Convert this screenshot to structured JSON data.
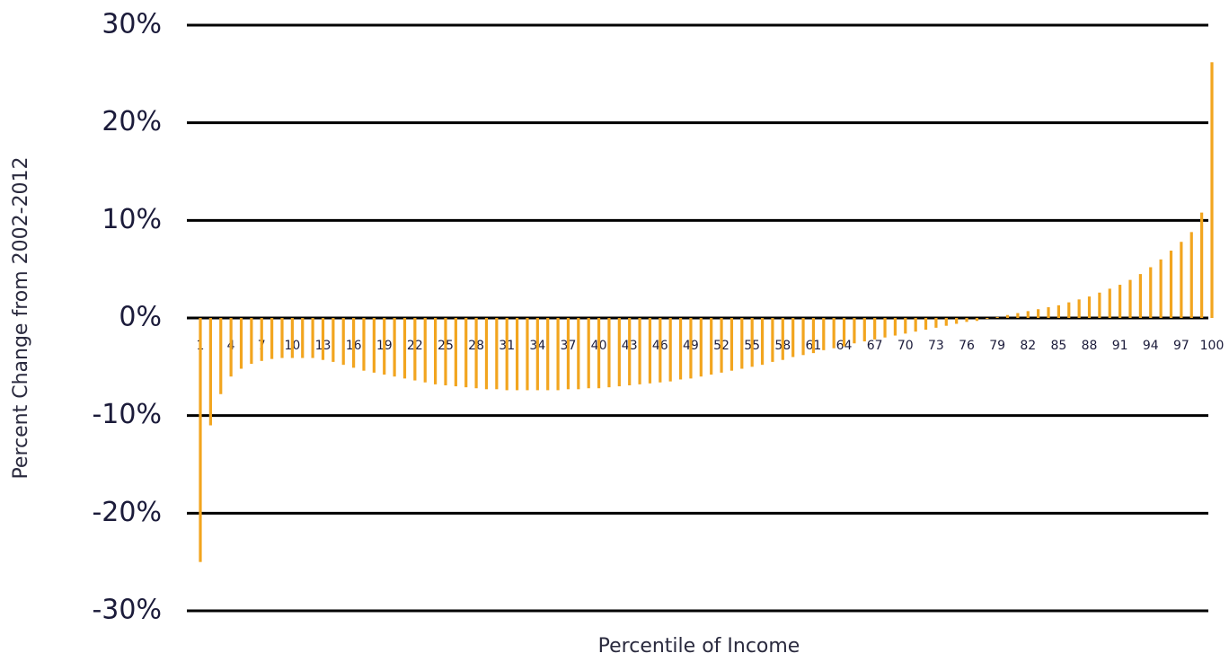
{
  "chart_data": {
    "type": "bar",
    "x_label": "Percentile of Income",
    "y_label": "Percent Change from 2002-2012",
    "categories": [
      "1",
      null,
      null,
      "4",
      null,
      null,
      "7",
      null,
      null,
      "10",
      null,
      null,
      "13",
      null,
      null,
      "16",
      null,
      null,
      "19",
      null,
      null,
      "22",
      null,
      null,
      "25",
      null,
      null,
      "28",
      null,
      null,
      "31",
      null,
      null,
      "34",
      null,
      null,
      "37",
      null,
      null,
      "40",
      null,
      null,
      "43",
      null,
      null,
      "46",
      null,
      null,
      "49",
      null,
      null,
      "52",
      null,
      null,
      "55",
      null,
      null,
      "58",
      null,
      null,
      "61",
      null,
      null,
      "64",
      null,
      null,
      "67",
      null,
      null,
      "70",
      null,
      null,
      "73",
      null,
      null,
      "76",
      null,
      null,
      "79",
      null,
      null,
      "82",
      null,
      null,
      "85",
      null,
      null,
      "88",
      null,
      null,
      "91",
      null,
      null,
      "94",
      null,
      null,
      "97",
      null,
      null,
      "100"
    ],
    "values": [
      -25,
      -11,
      -7.8,
      -6,
      -5.2,
      -4.7,
      -4.4,
      -4.2,
      -4.1,
      -4.1,
      -4.1,
      -4.1,
      -4.3,
      -4.5,
      -4.8,
      -5.1,
      -5.4,
      -5.6,
      -5.8,
      -6.0,
      -6.2,
      -6.4,
      -6.6,
      -6.8,
      -6.9,
      -7.0,
      -7.1,
      -7.2,
      -7.3,
      -7.3,
      -7.4,
      -7.4,
      -7.4,
      -7.4,
      -7.4,
      -7.4,
      -7.3,
      -7.3,
      -7.2,
      -7.2,
      -7.1,
      -7.0,
      -6.9,
      -6.8,
      -6.7,
      -6.6,
      -6.5,
      -6.3,
      -6.2,
      -6.0,
      -5.8,
      -5.6,
      -5.4,
      -5.2,
      -5.0,
      -4.8,
      -4.5,
      -4.3,
      -4.0,
      -3.8,
      -3.6,
      -3.3,
      -3.1,
      -2.9,
      -2.6,
      -2.4,
      -2.2,
      -2.0,
      -1.8,
      -1.6,
      -1.4,
      -1.2,
      -1.0,
      -0.8,
      -0.6,
      -0.4,
      -0.3,
      -0.1,
      0.1,
      0.3,
      0.5,
      0.7,
      0.9,
      1.1,
      1.3,
      1.6,
      1.9,
      2.2,
      2.6,
      3.0,
      3.4,
      3.9,
      4.5,
      5.2,
      6.0,
      6.9,
      7.8,
      8.8,
      10.8,
      26.2
    ],
    "color": "#f2a51f",
    "ylim": [
      -30,
      30
    ],
    "yticks": [
      {
        "value": -30,
        "label": "-30%"
      },
      {
        "value": -20,
        "label": "-20%"
      },
      {
        "value": -10,
        "label": "-10%"
      },
      {
        "value": 0,
        "label": "0%"
      },
      {
        "value": 10,
        "label": "10%"
      },
      {
        "value": 20,
        "label": "20%"
      },
      {
        "value": 30,
        "label": "30%"
      }
    ],
    "grid": true
  }
}
